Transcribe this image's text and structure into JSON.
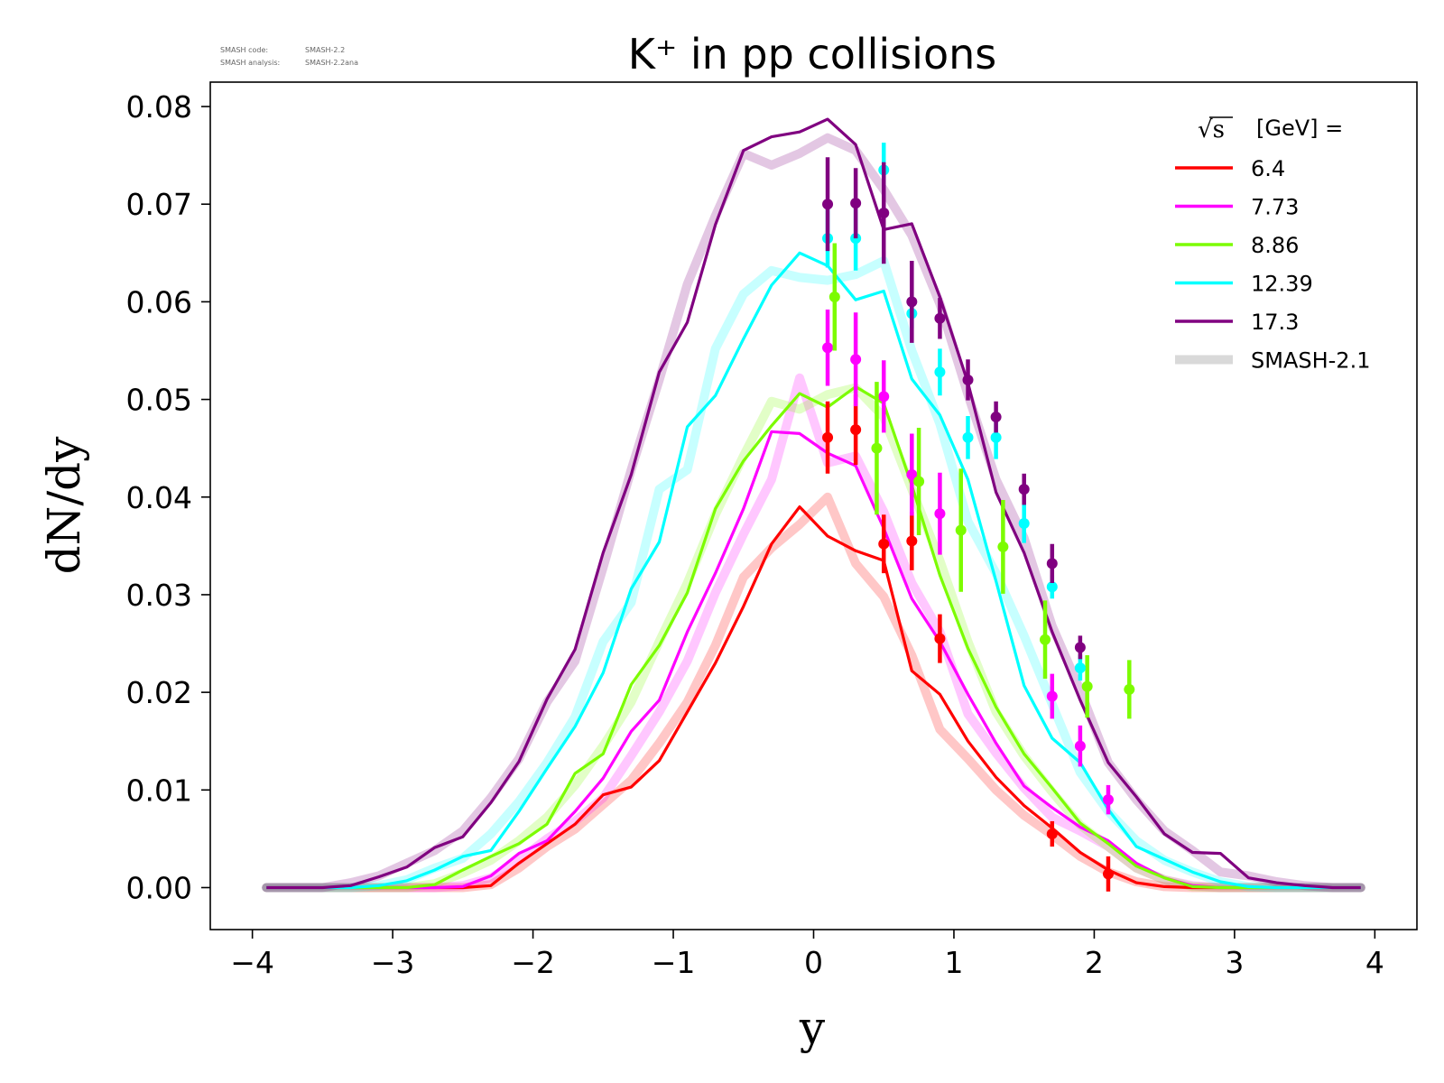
{
  "watermark": {
    "code_label": "SMASH code:",
    "code_value": "SMASH-2.2",
    "analysis_label": "SMASH analysis:",
    "analysis_value": "SMASH-2.2ana"
  },
  "chart_data": {
    "type": "line",
    "title": "K⁺ in pp collisions",
    "xlabel": "y",
    "ylabel": "dN/dy",
    "xlim": [
      -4.3,
      4.3
    ],
    "ylim": [
      -0.0043,
      0.0825
    ],
    "xticks": [
      -4,
      -3,
      -2,
      -1,
      0,
      1,
      2,
      3,
      4
    ],
    "xtick_labels": [
      "−4",
      "−3",
      "−2",
      "−1",
      "0",
      "1",
      "2",
      "3",
      "4"
    ],
    "yticks": [
      0,
      0.01,
      0.02,
      0.03,
      0.04,
      0.05,
      0.06,
      0.07,
      0.08
    ],
    "ytick_labels": [
      "0.00",
      "0.01",
      "0.02",
      "0.03",
      "0.04",
      "0.05",
      "0.06",
      "0.07",
      "0.08"
    ],
    "grid": false,
    "legend": {
      "position": "top-right",
      "title_sqrt": "√s",
      "title_unit": "[GeV] =",
      "reference_label": "SMASH-2.1"
    },
    "series": [
      {
        "name": "6.4",
        "color": "#ff0000",
        "x": [
          -3.9,
          -3.5,
          -3.3,
          -3.1,
          -2.9,
          -2.7,
          -2.5,
          -2.3,
          -2.1,
          -1.9,
          -1.7,
          -1.5,
          -1.3,
          -1.1,
          -0.9,
          -0.7,
          -0.5,
          -0.3,
          -0.1,
          0.1,
          0.3,
          0.5,
          0.7,
          0.9,
          1.1,
          1.3,
          1.5,
          1.7,
          1.9,
          2.1,
          2.3,
          2.5,
          2.7,
          2.9,
          3.1,
          3.3,
          3.5,
          3.7,
          3.9
        ],
        "y": [
          0,
          0,
          0,
          0,
          0,
          0,
          0,
          0.0002,
          0.0025,
          0.0045,
          0.0065,
          0.0095,
          0.0103,
          0.013,
          0.018,
          0.023,
          0.0288,
          0.0352,
          0.039,
          0.036,
          0.0345,
          0.0335,
          0.0222,
          0.0198,
          0.015,
          0.0113,
          0.0084,
          0.0061,
          0.0036,
          0.0018,
          0.0005,
          0.0001,
          0,
          0,
          0,
          0,
          0,
          0,
          0
        ],
        "ref_y": [
          0,
          0,
          0,
          0,
          0,
          0,
          0,
          0.0003,
          0.002,
          0.0042,
          0.006,
          0.0085,
          0.011,
          0.0148,
          0.019,
          0.0248,
          0.0318,
          0.0348,
          0.0372,
          0.04,
          0.0332,
          0.0298,
          0.0238,
          0.0162,
          0.0132,
          0.01,
          0.0074,
          0.0054,
          0.0032,
          0.0016,
          0.0006,
          0.0001,
          0,
          0,
          0,
          0,
          0,
          0,
          0
        ],
        "points": [
          {
            "x": 0.1,
            "y": 0.0461,
            "err": 0.0037
          },
          {
            "x": 0.3,
            "y": 0.0469,
            "err": 0.0036
          },
          {
            "x": 0.5,
            "y": 0.0352,
            "err": 0.003
          },
          {
            "x": 0.7,
            "y": 0.0355,
            "err": 0.003
          },
          {
            "x": 0.9,
            "y": 0.0255,
            "err": 0.0025
          },
          {
            "x": 1.7,
            "y": 0.0055,
            "err": 0.0013
          },
          {
            "x": 2.1,
            "y": 0.0014,
            "err": 0.0018
          }
        ]
      },
      {
        "name": "7.73",
        "color": "#ff00ff",
        "x": [
          -3.9,
          -3.5,
          -3.3,
          -3.1,
          -2.9,
          -2.7,
          -2.5,
          -2.3,
          -2.1,
          -1.9,
          -1.7,
          -1.5,
          -1.3,
          -1.1,
          -0.9,
          -0.7,
          -0.5,
          -0.3,
          -0.1,
          0.1,
          0.3,
          0.5,
          0.7,
          0.9,
          1.1,
          1.3,
          1.5,
          1.7,
          1.9,
          2.1,
          2.3,
          2.5,
          2.7,
          2.9,
          3.1,
          3.3,
          3.5,
          3.7,
          3.9
        ],
        "y": [
          0,
          0,
          0,
          0,
          0,
          0,
          0.0001,
          0.0012,
          0.0035,
          0.0048,
          0.0078,
          0.0112,
          0.016,
          0.0192,
          0.0262,
          0.0322,
          0.0388,
          0.0467,
          0.0465,
          0.0445,
          0.0432,
          0.0368,
          0.0296,
          0.0252,
          0.0198,
          0.0148,
          0.0104,
          0.0082,
          0.0062,
          0.0048,
          0.0025,
          0.001,
          0.0002,
          0,
          0,
          0,
          0,
          0,
          0
        ],
        "ref_y": [
          0,
          0,
          0,
          0,
          0,
          0,
          0.0002,
          0.001,
          0.0028,
          0.005,
          0.0068,
          0.0092,
          0.0135,
          0.018,
          0.0232,
          0.0302,
          0.0362,
          0.0418,
          0.0522,
          0.0435,
          0.0442,
          0.0385,
          0.0312,
          0.0262,
          0.0178,
          0.0138,
          0.0102,
          0.0072,
          0.0058,
          0.0042,
          0.002,
          0.0008,
          0.0002,
          0,
          0,
          0,
          0,
          0,
          0
        ],
        "points": [
          {
            "x": 0.1,
            "y": 0.0553,
            "err": 0.0039
          },
          {
            "x": 0.3,
            "y": 0.0541,
            "err": 0.0048
          },
          {
            "x": 0.5,
            "y": 0.0503,
            "err": 0.0037
          },
          {
            "x": 0.7,
            "y": 0.0423,
            "err": 0.0042
          },
          {
            "x": 0.9,
            "y": 0.0383,
            "err": 0.0042
          },
          {
            "x": 1.7,
            "y": 0.0196,
            "err": 0.0023
          },
          {
            "x": 1.9,
            "y": 0.0145,
            "err": 0.0021
          },
          {
            "x": 2.1,
            "y": 0.009,
            "err": 0.0015
          }
        ]
      },
      {
        "name": "8.86",
        "color": "#7cfc00",
        "x": [
          -3.9,
          -3.5,
          -3.3,
          -3.1,
          -2.9,
          -2.7,
          -2.5,
          -2.3,
          -2.1,
          -1.9,
          -1.7,
          -1.5,
          -1.3,
          -1.1,
          -0.9,
          -0.7,
          -0.5,
          -0.3,
          -0.1,
          0.1,
          0.3,
          0.5,
          0.7,
          0.9,
          1.1,
          1.3,
          1.5,
          1.7,
          1.9,
          2.1,
          2.3,
          2.5,
          2.7,
          2.9,
          3.1,
          3.3,
          3.5,
          3.7,
          3.9
        ],
        "y": [
          0,
          0,
          0,
          0,
          0,
          0.0003,
          0.0018,
          0.0032,
          0.0045,
          0.0065,
          0.0117,
          0.0137,
          0.0208,
          0.0248,
          0.0302,
          0.0388,
          0.0437,
          0.0473,
          0.0506,
          0.0492,
          0.0513,
          0.0496,
          0.0412,
          0.032,
          0.0245,
          0.0185,
          0.0137,
          0.0102,
          0.0066,
          0.0045,
          0.0022,
          0.001,
          0.0001,
          0,
          0,
          0,
          0,
          0,
          0
        ],
        "ref_y": [
          0,
          0,
          0,
          0,
          0,
          0.0004,
          0.0015,
          0.0028,
          0.0048,
          0.0072,
          0.0105,
          0.0145,
          0.019,
          0.0252,
          0.0312,
          0.0382,
          0.0442,
          0.0498,
          0.049,
          0.0505,
          0.0512,
          0.0482,
          0.0408,
          0.0335,
          0.0252,
          0.018,
          0.0135,
          0.0098,
          0.0064,
          0.0042,
          0.002,
          0.0008,
          0.0001,
          0,
          0,
          0,
          0,
          0,
          0
        ],
        "points": [
          {
            "x": 0.15,
            "y": 0.0605,
            "err": 0.0055
          },
          {
            "x": 0.45,
            "y": 0.045,
            "err": 0.0068
          },
          {
            "x": 0.75,
            "y": 0.0416,
            "err": 0.0055
          },
          {
            "x": 1.05,
            "y": 0.0366,
            "err": 0.0063
          },
          {
            "x": 1.35,
            "y": 0.0349,
            "err": 0.0048
          },
          {
            "x": 1.65,
            "y": 0.0254,
            "err": 0.004
          },
          {
            "x": 1.95,
            "y": 0.0206,
            "err": 0.0032
          },
          {
            "x": 2.25,
            "y": 0.0203,
            "err": 0.003
          }
        ]
      },
      {
        "name": "12.39",
        "color": "#00ffff",
        "x": [
          -3.9,
          -3.5,
          -3.3,
          -3.1,
          -2.9,
          -2.7,
          -2.5,
          -2.3,
          -2.1,
          -1.9,
          -1.7,
          -1.5,
          -1.3,
          -1.1,
          -0.9,
          -0.7,
          -0.5,
          -0.3,
          -0.1,
          0.1,
          0.3,
          0.5,
          0.7,
          0.9,
          1.1,
          1.3,
          1.5,
          1.7,
          1.9,
          2.1,
          2.3,
          2.5,
          2.7,
          2.9,
          3.1,
          3.3,
          3.5,
          3.7,
          3.9
        ],
        "y": [
          0,
          0,
          0,
          0.0002,
          0.0007,
          0.0018,
          0.0032,
          0.0038,
          0.0078,
          0.0122,
          0.0165,
          0.022,
          0.0306,
          0.0354,
          0.0472,
          0.0504,
          0.0562,
          0.0617,
          0.065,
          0.0637,
          0.0602,
          0.0611,
          0.0521,
          0.0484,
          0.0418,
          0.0314,
          0.0207,
          0.0153,
          0.0128,
          0.008,
          0.0042,
          0.0029,
          0.0016,
          0.0006,
          0.0001,
          0,
          0,
          0,
          0
        ],
        "ref_y": [
          0,
          0,
          0,
          0.0002,
          0.0008,
          0.002,
          0.003,
          0.0055,
          0.0088,
          0.0128,
          0.0175,
          0.0252,
          0.0292,
          0.0408,
          0.0428,
          0.0552,
          0.0608,
          0.0632,
          0.0625,
          0.0622,
          0.0628,
          0.0642,
          0.055,
          0.0475,
          0.0375,
          0.0322,
          0.0258,
          0.0188,
          0.0118,
          0.0078,
          0.0048,
          0.0028,
          0.0016,
          0.0006,
          0.0001,
          0,
          0,
          0,
          0
        ],
        "points": [
          {
            "x": 0.1,
            "y": 0.0665,
            "err": 0.003
          },
          {
            "x": 0.3,
            "y": 0.0665,
            "err": 0.0033
          },
          {
            "x": 0.5,
            "y": 0.0735,
            "err": 0.0028
          },
          {
            "x": 0.7,
            "y": 0.0588,
            "err": 0.0015
          },
          {
            "x": 0.9,
            "y": 0.0528,
            "err": 0.0024
          },
          {
            "x": 1.1,
            "y": 0.0461,
            "err": 0.0022
          },
          {
            "x": 1.3,
            "y": 0.0461,
            "err": 0.0022
          },
          {
            "x": 1.5,
            "y": 0.0373,
            "err": 0.002
          },
          {
            "x": 1.7,
            "y": 0.0308,
            "err": 0.0012
          },
          {
            "x": 1.9,
            "y": 0.0225,
            "err": 0.0013
          }
        ]
      },
      {
        "name": "17.3",
        "color": "#800080",
        "x": [
          -3.9,
          -3.5,
          -3.3,
          -3.1,
          -2.9,
          -2.7,
          -2.5,
          -2.3,
          -2.1,
          -1.9,
          -1.7,
          -1.5,
          -1.3,
          -1.1,
          -0.9,
          -0.7,
          -0.5,
          -0.3,
          -0.1,
          0.1,
          0.3,
          0.5,
          0.7,
          0.9,
          1.1,
          1.3,
          1.5,
          1.7,
          1.9,
          2.1,
          2.3,
          2.5,
          2.7,
          2.9,
          3.1,
          3.3,
          3.5,
          3.7,
          3.9
        ],
        "y": [
          0,
          0,
          0.0002,
          0.0011,
          0.0021,
          0.0041,
          0.0052,
          0.0087,
          0.0129,
          0.0193,
          0.0244,
          0.0343,
          0.0423,
          0.0528,
          0.0579,
          0.0679,
          0.0755,
          0.0769,
          0.0774,
          0.0787,
          0.0761,
          0.0674,
          0.068,
          0.0605,
          0.0517,
          0.0405,
          0.0343,
          0.0262,
          0.0192,
          0.0128,
          0.0093,
          0.0055,
          0.0036,
          0.0035,
          0.001,
          0.0005,
          0.0002,
          0,
          0
        ],
        "ref_y": [
          0,
          0,
          0.0005,
          0.0012,
          0.0025,
          0.0038,
          0.0058,
          0.0092,
          0.0132,
          0.019,
          0.0232,
          0.0328,
          0.0428,
          0.052,
          0.0618,
          0.0688,
          0.0752,
          0.074,
          0.0752,
          0.0768,
          0.0755,
          0.0715,
          0.0668,
          0.0598,
          0.0505,
          0.0418,
          0.0358,
          0.0268,
          0.0202,
          0.0128,
          0.009,
          0.0058,
          0.0038,
          0.0016,
          0.0012,
          0.0006,
          0.0002,
          0,
          0
        ],
        "points": [
          {
            "x": 0.1,
            "y": 0.07,
            "err": 0.0048
          },
          {
            "x": 0.3,
            "y": 0.0701,
            "err": 0.0036
          },
          {
            "x": 0.5,
            "y": 0.0691,
            "err": 0.0052
          },
          {
            "x": 0.7,
            "y": 0.06,
            "err": 0.0042
          },
          {
            "x": 0.9,
            "y": 0.0583,
            "err": 0.0021
          },
          {
            "x": 1.1,
            "y": 0.052,
            "err": 0.0021
          },
          {
            "x": 1.3,
            "y": 0.0482,
            "err": 0.0016
          },
          {
            "x": 1.5,
            "y": 0.0408,
            "err": 0.0016
          },
          {
            "x": 1.7,
            "y": 0.0332,
            "err": 0.002
          },
          {
            "x": 1.9,
            "y": 0.0246,
            "err": 0.0012
          }
        ]
      }
    ]
  }
}
